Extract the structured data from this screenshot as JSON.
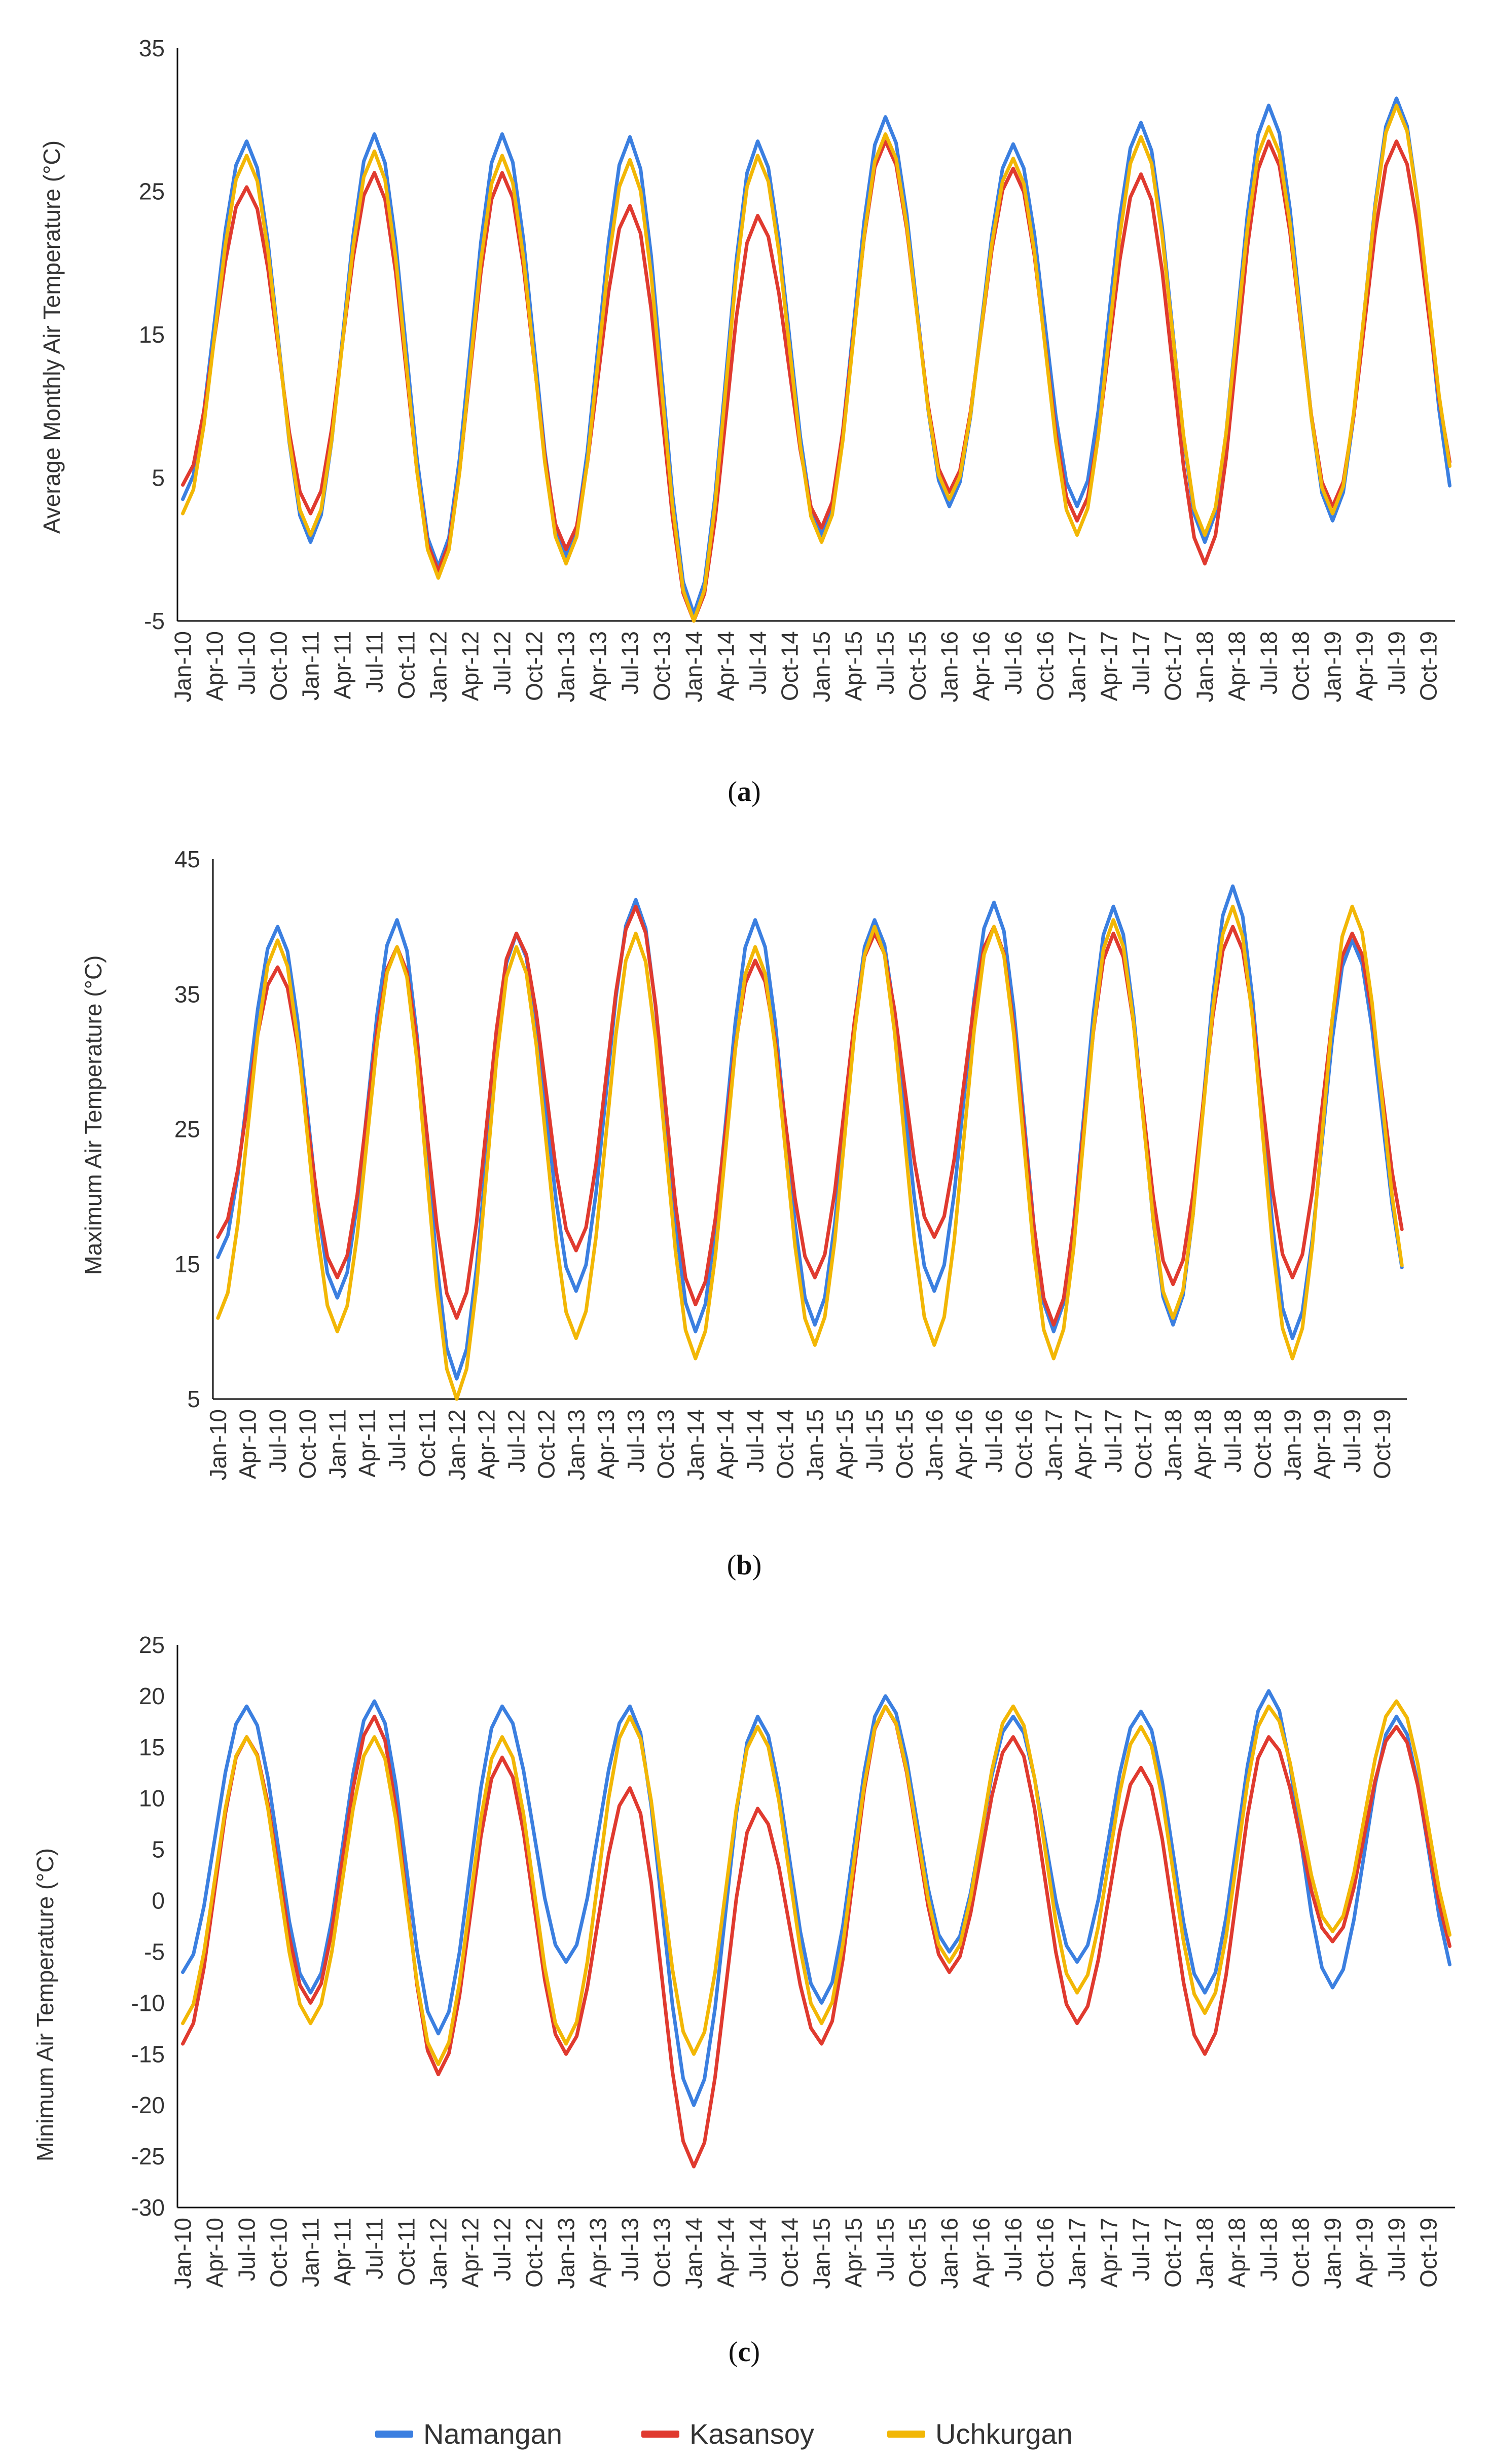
{
  "colors": {
    "Namangan": "#3b7fe0",
    "Kasansoy": "#e03a2f",
    "Uchkurgan": "#f2b705",
    "axis": "#111111"
  },
  "legend": {
    "items": [
      {
        "name": "Namangan",
        "color": "#3b7fe0"
      },
      {
        "name": "Kasansoy",
        "color": "#e03a2f"
      },
      {
        "name": "Uchkurgan",
        "color": "#f2b705"
      }
    ]
  },
  "chart_data": [
    {
      "type": "line",
      "panel_label": "a",
      "ylabel": "Average Monthly Air Temperature (°C)",
      "ylim": [
        -5,
        35
      ],
      "yticks": [
        -5,
        5,
        15,
        25,
        35
      ],
      "x_tick_labels": [
        "Jan-10",
        "Apr-10",
        "Jul-10",
        "Oct-10",
        "Jan-11",
        "Apr-11",
        "Jul-11",
        "Oct-11",
        "Jan-12",
        "Apr-12",
        "Jul-12",
        "Oct-12",
        "Jan-13",
        "Apr-13",
        "Jul-13",
        "Oct-13",
        "Jan-14",
        "Apr-14",
        "Jul-14",
        "Oct-14",
        "Jan-15",
        "Apr-15",
        "Jul-15",
        "Oct-15",
        "Jan-16",
        "Apr-16",
        "Jul-16",
        "Oct-16",
        "Jan-17",
        "Apr-17",
        "Jul-17",
        "Oct-17",
        "Jan-18",
        "Apr-18",
        "Jul-18",
        "Oct-18",
        "Jan-19",
        "Apr-19",
        "Jul-19",
        "Oct-19"
      ],
      "series": [
        {
          "name": "Namangan",
          "peaks": [
            28.5,
            29,
            29,
            28.8,
            28.5,
            30.2,
            28.3,
            29.8,
            31,
            31.5
          ],
          "troughs": [
            3.5,
            0.5,
            -1.2,
            -0.5,
            -4.5,
            1,
            3,
            3,
            0.5,
            2,
            2.5
          ]
        },
        {
          "name": "Kasansoy",
          "peaks": [
            25.3,
            26.3,
            26.3,
            24,
            23.3,
            28.5,
            26.6,
            26.2,
            28.5,
            28.5
          ],
          "troughs": [
            4.5,
            2.5,
            -1.5,
            0,
            -5,
            1.5,
            4,
            2,
            -1,
            3,
            4.5
          ]
        },
        {
          "name": "Uchkurgan",
          "peaks": [
            27.5,
            27.8,
            27.5,
            27.2,
            27.5,
            29,
            27.3,
            28.8,
            29.5,
            31
          ],
          "troughs": [
            2.5,
            1,
            -2,
            -1,
            -5,
            0.5,
            3.5,
            1,
            1,
            2.5,
            4
          ]
        }
      ]
    },
    {
      "type": "line",
      "panel_label": "b",
      "ylabel": "Maximum Air Temperature (°C)",
      "ylim": [
        5,
        45
      ],
      "yticks": [
        5,
        15,
        25,
        35,
        45
      ],
      "x_tick_labels": [
        "Jan-10",
        "Apr-10",
        "Jul-10",
        "Oct-10",
        "Jan-11",
        "Apr-11",
        "Jul-11",
        "Oct-11",
        "Jan-12",
        "Apr-12",
        "Jul-12",
        "Oct-12",
        "Jan-13",
        "Apr-13",
        "Jul-13",
        "Oct-13",
        "Jan-14",
        "Apr-14",
        "Jul-14",
        "Oct-14",
        "Jan-15",
        "Apr-15",
        "Jul-15",
        "Oct-15",
        "Jan-16",
        "Apr-16",
        "Jul-16",
        "Oct-16",
        "Jan-17",
        "Apr-17",
        "Jul-17",
        "Oct-17",
        "Jan-18",
        "Apr-18",
        "Jul-18",
        "Oct-18",
        "Jan-19",
        "Apr-19",
        "Jul-19",
        "Oct-19"
      ],
      "series": [
        {
          "name": "Namangan",
          "peaks": [
            40,
            40.5,
            39.5,
            42,
            40.5,
            40.5,
            41.8,
            41.5,
            43,
            39
          ],
          "troughs": [
            15.5,
            12.5,
            6.5,
            13,
            10,
            10.5,
            13,
            10,
            10.5,
            9.5,
            13
          ]
        },
        {
          "name": "Kasansoy",
          "peaks": [
            37,
            38.5,
            39.5,
            41.5,
            37.5,
            39.5,
            40,
            39.5,
            40,
            39.5
          ],
          "troughs": [
            17,
            14,
            11,
            16,
            12,
            14,
            17,
            10.5,
            13.5,
            14,
            16
          ]
        },
        {
          "name": "Uchkurgan",
          "peaks": [
            39,
            38.5,
            38.5,
            39.5,
            38.5,
            40,
            40,
            40.5,
            41.5,
            41.5
          ],
          "troughs": [
            11,
            10,
            5,
            9.5,
            8,
            9,
            9,
            8,
            11,
            8,
            13
          ]
        }
      ]
    },
    {
      "type": "line",
      "panel_label": "c",
      "ylabel": "Minimum Air Temperature (°C)",
      "ylim": [
        -30,
        25
      ],
      "yticks": [
        -30,
        -25,
        -20,
        -15,
        -10,
        -5,
        0,
        5,
        10,
        15,
        20,
        25
      ],
      "x_tick_labels": [
        "Jan-10",
        "Apr-10",
        "Jul-10",
        "Oct-10",
        "Jan-11",
        "Apr-11",
        "Jul-11",
        "Oct-11",
        "Jan-12",
        "Apr-12",
        "Jul-12",
        "Oct-12",
        "Jan-13",
        "Apr-13",
        "Jul-13",
        "Oct-13",
        "Jan-14",
        "Apr-14",
        "Jul-14",
        "Oct-14",
        "Jan-15",
        "Apr-15",
        "Jul-15",
        "Oct-15",
        "Jan-16",
        "Apr-16",
        "Jul-16",
        "Oct-16",
        "Jan-17",
        "Apr-17",
        "Jul-17",
        "Oct-17",
        "Jan-18",
        "Apr-18",
        "Jul-18",
        "Oct-18",
        "Jan-19",
        "Apr-19",
        "Jul-19",
        "Oct-19"
      ],
      "series": [
        {
          "name": "Namangan",
          "peaks": [
            19,
            19.5,
            19,
            19,
            18,
            20,
            18,
            18.5,
            20.5,
            18
          ],
          "troughs": [
            -7,
            -9,
            -13,
            -6,
            -20,
            -10,
            -5,
            -6,
            -9,
            -8.5,
            -8
          ]
        },
        {
          "name": "Kasansoy",
          "peaks": [
            16,
            18,
            14,
            11,
            9,
            19,
            16,
            13,
            16,
            17
          ],
          "troughs": [
            -14,
            -10,
            -17,
            -15,
            -26,
            -14,
            -7,
            -12,
            -15,
            -4,
            -6
          ]
        },
        {
          "name": "Uchkurgan",
          "peaks": [
            16,
            16,
            16,
            18,
            17,
            19,
            19,
            17,
            19,
            19.5
          ],
          "troughs": [
            -12,
            -12,
            -16,
            -14,
            -15,
            -12,
            -6,
            -9,
            -11,
            -3,
            -5
          ]
        }
      ]
    }
  ]
}
